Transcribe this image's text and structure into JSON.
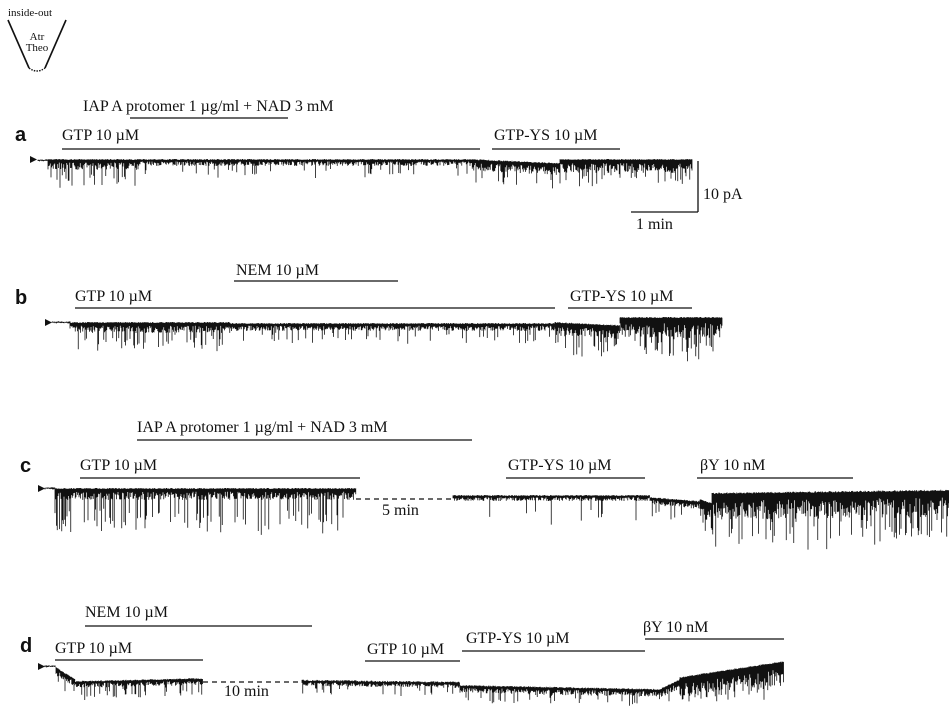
{
  "config": {
    "label": "inside-out",
    "line1": "Atr",
    "line2": "Theo"
  },
  "panels": [
    {
      "id": "a",
      "letter": "a",
      "bars": [
        {
          "text": "IAP A protomer 1 µg/ml + NAD 3 mM"
        },
        {
          "text": "GTP 10 µM"
        },
        {
          "text": "GTP-YS 10 µM"
        }
      ],
      "scale": {
        "current": "10 pA",
        "time": "1 min"
      }
    },
    {
      "id": "b",
      "letter": "b",
      "bars": [
        {
          "text": "NEM 10 µM"
        },
        {
          "text": "GTP 10 µM"
        },
        {
          "text": "GTP-YS 10 µM"
        }
      ]
    },
    {
      "id": "c",
      "letter": "c",
      "bars": [
        {
          "text": "IAP A protomer 1 µg/ml + NAD 3 mM"
        },
        {
          "text": "GTP 10 µM"
        },
        {
          "text": "GTP-YS 10 µM"
        },
        {
          "text": "βY 10 nM"
        }
      ],
      "gap": "5 min"
    },
    {
      "id": "d",
      "letter": "d",
      "bars": [
        {
          "text": "NEM 10 µM"
        },
        {
          "text": "GTP 10 µM"
        },
        {
          "text": "GTP 10 µM"
        },
        {
          "text": "GTP-YS 10 µM"
        },
        {
          "text": "βY 10 nM"
        }
      ],
      "gap": "10 min"
    }
  ]
}
